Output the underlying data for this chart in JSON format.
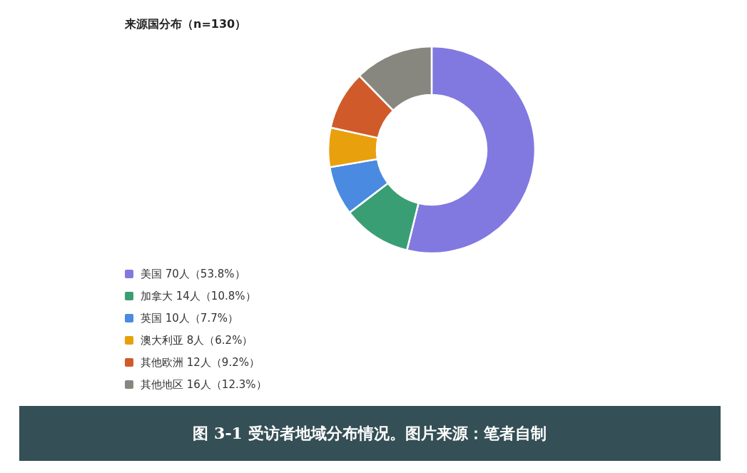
{
  "chart_data": {
    "type": "donut",
    "title": "来源国分布（n=130）",
    "categories": [
      "美国 70人（53.8%）",
      "加拿大 14人（10.8%）",
      "英国 10人（7.7%）",
      "澳大利亚 8人（6.2%）",
      "其他欧洲 12人（9.2%）",
      "其他地区 16人（12.3%）"
    ],
    "values": [
      70,
      14,
      10,
      8,
      12,
      16
    ],
    "colors": [
      "#8179e0",
      "#3a9e74",
      "#4a8ae0",
      "#e8a00c",
      "#d05a2a",
      "#878780"
    ],
    "legend": "bottom left",
    "annotations": [
      "图 3-1 受访者地域分布情况。图片来源：笔者自制"
    ]
  }
}
